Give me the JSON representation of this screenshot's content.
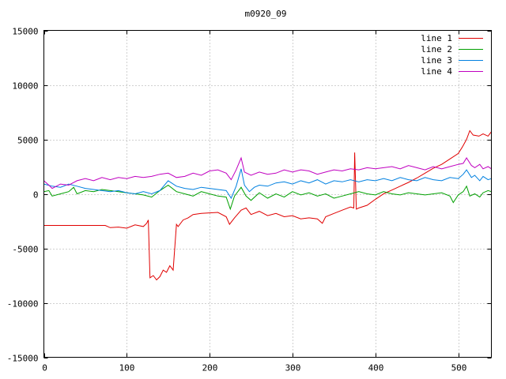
{
  "chart_data": {
    "type": "line",
    "title": "m0920_09",
    "xlabel": "",
    "ylabel": "",
    "xlim": [
      0,
      540
    ],
    "ylim": [
      -15000,
      15000
    ],
    "x_ticks": [
      "0",
      "100",
      "200",
      "300",
      "400",
      "500"
    ],
    "y_ticks": [
      "-15000",
      "-10000",
      "-5000",
      "0",
      "5000",
      "10000",
      "15000"
    ],
    "grid": true,
    "legend_position": "top-right",
    "series": [
      {
        "name": "line 1",
        "color": "#e00000",
        "points": [
          [
            0,
            -2900
          ],
          [
            74,
            -2900
          ],
          [
            80,
            -3100
          ],
          [
            90,
            -3050
          ],
          [
            100,
            -3150
          ],
          [
            110,
            -2850
          ],
          [
            120,
            -3000
          ],
          [
            124,
            -2700
          ],
          [
            126,
            -2400
          ],
          [
            128,
            -7700
          ],
          [
            132,
            -7500
          ],
          [
            136,
            -7900
          ],
          [
            140,
            -7600
          ],
          [
            144,
            -7000
          ],
          [
            148,
            -7200
          ],
          [
            152,
            -6600
          ],
          [
            156,
            -7000
          ],
          [
            160,
            -2800
          ],
          [
            162,
            -3000
          ],
          [
            168,
            -2400
          ],
          [
            174,
            -2200
          ],
          [
            180,
            -1900
          ],
          [
            190,
            -1800
          ],
          [
            200,
            -1750
          ],
          [
            210,
            -1700
          ],
          [
            220,
            -2100
          ],
          [
            224,
            -2800
          ],
          [
            230,
            -2200
          ],
          [
            238,
            -1500
          ],
          [
            244,
            -1300
          ],
          [
            250,
            -1900
          ],
          [
            260,
            -1600
          ],
          [
            270,
            -2000
          ],
          [
            280,
            -1800
          ],
          [
            290,
            -2100
          ],
          [
            300,
            -2000
          ],
          [
            310,
            -2300
          ],
          [
            320,
            -2200
          ],
          [
            330,
            -2300
          ],
          [
            336,
            -2700
          ],
          [
            340,
            -2100
          ],
          [
            350,
            -1800
          ],
          [
            360,
            -1500
          ],
          [
            370,
            -1200
          ],
          [
            374,
            -1300
          ],
          [
            375,
            3800
          ],
          [
            377,
            -1400
          ],
          [
            380,
            -1300
          ],
          [
            390,
            -1050
          ],
          [
            400,
            -500
          ],
          [
            410,
            0
          ],
          [
            420,
            350
          ],
          [
            430,
            700
          ],
          [
            440,
            1050
          ],
          [
            450,
            1450
          ],
          [
            460,
            1900
          ],
          [
            470,
            2350
          ],
          [
            480,
            2700
          ],
          [
            490,
            3200
          ],
          [
            500,
            3700
          ],
          [
            505,
            4300
          ],
          [
            510,
            5000
          ],
          [
            514,
            5800
          ],
          [
            518,
            5400
          ],
          [
            525,
            5300
          ],
          [
            530,
            5500
          ],
          [
            536,
            5300
          ],
          [
            540,
            5700
          ]
        ]
      },
      {
        "name": "line 2",
        "color": "#00a000",
        "points": [
          [
            0,
            200
          ],
          [
            6,
            300
          ],
          [
            10,
            -200
          ],
          [
            20,
            0
          ],
          [
            30,
            200
          ],
          [
            36,
            600
          ],
          [
            40,
            0
          ],
          [
            50,
            300
          ],
          [
            60,
            200
          ],
          [
            70,
            400
          ],
          [
            80,
            300
          ],
          [
            90,
            200
          ],
          [
            100,
            100
          ],
          [
            110,
            0
          ],
          [
            120,
            -100
          ],
          [
            130,
            -300
          ],
          [
            140,
            300
          ],
          [
            150,
            800
          ],
          [
            160,
            200
          ],
          [
            170,
            0
          ],
          [
            180,
            -200
          ],
          [
            190,
            200
          ],
          [
            200,
            0
          ],
          [
            210,
            -200
          ],
          [
            220,
            -300
          ],
          [
            225,
            -1400
          ],
          [
            230,
            -200
          ],
          [
            238,
            600
          ],
          [
            244,
            -200
          ],
          [
            250,
            -600
          ],
          [
            260,
            100
          ],
          [
            270,
            -400
          ],
          [
            280,
            0
          ],
          [
            290,
            -300
          ],
          [
            300,
            200
          ],
          [
            310,
            -100
          ],
          [
            320,
            100
          ],
          [
            330,
            -200
          ],
          [
            340,
            0
          ],
          [
            350,
            -400
          ],
          [
            360,
            -200
          ],
          [
            370,
            0
          ],
          [
            380,
            200
          ],
          [
            390,
            0
          ],
          [
            400,
            -100
          ],
          [
            410,
            200
          ],
          [
            420,
            0
          ],
          [
            430,
            -100
          ],
          [
            440,
            100
          ],
          [
            450,
            0
          ],
          [
            460,
            -100
          ],
          [
            470,
            0
          ],
          [
            480,
            100
          ],
          [
            490,
            -200
          ],
          [
            494,
            -800
          ],
          [
            500,
            -100
          ],
          [
            506,
            200
          ],
          [
            510,
            700
          ],
          [
            514,
            -200
          ],
          [
            520,
            0
          ],
          [
            526,
            -300
          ],
          [
            530,
            100
          ],
          [
            536,
            300
          ],
          [
            540,
            200
          ]
        ]
      },
      {
        "name": "line 3",
        "color": "#0080e0",
        "points": [
          [
            0,
            900
          ],
          [
            10,
            700
          ],
          [
            20,
            600
          ],
          [
            30,
            900
          ],
          [
            40,
            700
          ],
          [
            50,
            500
          ],
          [
            60,
            400
          ],
          [
            70,
            300
          ],
          [
            80,
            200
          ],
          [
            90,
            300
          ],
          [
            100,
            100
          ],
          [
            110,
            0
          ],
          [
            120,
            200
          ],
          [
            130,
            0
          ],
          [
            140,
            300
          ],
          [
            150,
            1200
          ],
          [
            160,
            700
          ],
          [
            170,
            500
          ],
          [
            180,
            400
          ],
          [
            190,
            600
          ],
          [
            200,
            500
          ],
          [
            210,
            400
          ],
          [
            220,
            300
          ],
          [
            226,
            -400
          ],
          [
            232,
            700
          ],
          [
            238,
            2300
          ],
          [
            242,
            800
          ],
          [
            248,
            200
          ],
          [
            254,
            600
          ],
          [
            260,
            800
          ],
          [
            270,
            700
          ],
          [
            280,
            1000
          ],
          [
            290,
            1100
          ],
          [
            300,
            900
          ],
          [
            310,
            1200
          ],
          [
            320,
            1000
          ],
          [
            330,
            1300
          ],
          [
            340,
            900
          ],
          [
            350,
            1200
          ],
          [
            360,
            1100
          ],
          [
            370,
            1300
          ],
          [
            380,
            1100
          ],
          [
            390,
            1300
          ],
          [
            400,
            1200
          ],
          [
            410,
            1400
          ],
          [
            420,
            1200
          ],
          [
            430,
            1500
          ],
          [
            440,
            1300
          ],
          [
            450,
            1200
          ],
          [
            460,
            1500
          ],
          [
            470,
            1300
          ],
          [
            480,
            1200
          ],
          [
            490,
            1500
          ],
          [
            500,
            1400
          ],
          [
            506,
            1800
          ],
          [
            510,
            2200
          ],
          [
            516,
            1500
          ],
          [
            520,
            1700
          ],
          [
            526,
            1200
          ],
          [
            530,
            1600
          ],
          [
            536,
            1300
          ],
          [
            540,
            1400
          ]
        ]
      },
      {
        "name": "line 4",
        "color": "#c000c0",
        "points": [
          [
            0,
            1200
          ],
          [
            6,
            800
          ],
          [
            10,
            500
          ],
          [
            20,
            900
          ],
          [
            30,
            800
          ],
          [
            40,
            1200
          ],
          [
            50,
            1400
          ],
          [
            60,
            1200
          ],
          [
            70,
            1500
          ],
          [
            80,
            1300
          ],
          [
            90,
            1500
          ],
          [
            100,
            1400
          ],
          [
            110,
            1600
          ],
          [
            120,
            1500
          ],
          [
            130,
            1600
          ],
          [
            140,
            1800
          ],
          [
            150,
            1900
          ],
          [
            160,
            1500
          ],
          [
            170,
            1600
          ],
          [
            180,
            1900
          ],
          [
            190,
            1700
          ],
          [
            200,
            2100
          ],
          [
            210,
            2200
          ],
          [
            220,
            1900
          ],
          [
            226,
            1300
          ],
          [
            232,
            2200
          ],
          [
            238,
            3300
          ],
          [
            242,
            2000
          ],
          [
            250,
            1700
          ],
          [
            260,
            2000
          ],
          [
            270,
            1800
          ],
          [
            280,
            1900
          ],
          [
            290,
            2200
          ],
          [
            300,
            2000
          ],
          [
            310,
            2200
          ],
          [
            320,
            2100
          ],
          [
            330,
            1800
          ],
          [
            340,
            2000
          ],
          [
            350,
            2200
          ],
          [
            360,
            2100
          ],
          [
            370,
            2300
          ],
          [
            380,
            2200
          ],
          [
            390,
            2400
          ],
          [
            400,
            2300
          ],
          [
            410,
            2400
          ],
          [
            420,
            2500
          ],
          [
            430,
            2300
          ],
          [
            440,
            2600
          ],
          [
            450,
            2400
          ],
          [
            460,
            2200
          ],
          [
            470,
            2500
          ],
          [
            480,
            2300
          ],
          [
            490,
            2500
          ],
          [
            500,
            2700
          ],
          [
            506,
            2800
          ],
          [
            510,
            3300
          ],
          [
            516,
            2600
          ],
          [
            520,
            2400
          ],
          [
            526,
            2700
          ],
          [
            530,
            2300
          ],
          [
            536,
            2500
          ],
          [
            540,
            2300
          ]
        ]
      }
    ]
  }
}
